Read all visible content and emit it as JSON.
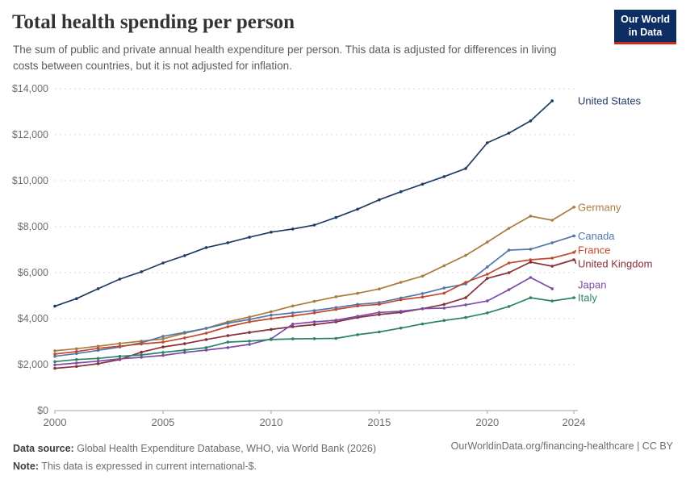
{
  "header": {
    "title": "Total health spending per person",
    "subtitle": "The sum of public and private annual health expenditure per person. This data is adjusted for differences in living costs between countries, but it is not adjusted for inflation.",
    "logo": {
      "line1": "Our World",
      "line2": "in Data",
      "bg_color": "#0d2e63",
      "accent_color": "#d0281e"
    }
  },
  "footer": {
    "source_label": "Data source:",
    "source_text": "Global Health Expenditure Database, WHO, via World Bank (2026)",
    "note_label": "Note:",
    "note_text": "This data is expressed in current international-$.",
    "right_text": "OurWorldinData.org/financing-healthcare | CC BY"
  },
  "chart_data": {
    "type": "line",
    "title": "Total health spending per person",
    "xlabel": "",
    "ylabel": "",
    "ylim": [
      0,
      14000
    ],
    "ytick_step": 2000,
    "currency_prefix": "$",
    "grid": "horizontal-dashed",
    "legend_position": "right-end-labels",
    "xticks": [
      2000,
      2005,
      2010,
      2015,
      2020,
      2024
    ],
    "x": [
      2000,
      2001,
      2002,
      2003,
      2004,
      2005,
      2006,
      2007,
      2008,
      2009,
      2010,
      2011,
      2012,
      2013,
      2014,
      2015,
      2016,
      2017,
      2018,
      2019,
      2020,
      2021,
      2022,
      2023,
      2024
    ],
    "series": [
      {
        "name": "United States",
        "color": "#1d3d63",
        "label_dy": 0,
        "values": [
          4540,
          4870,
          5300,
          5720,
          6040,
          6420,
          6740,
          7090,
          7300,
          7540,
          7760,
          7900,
          8070,
          8400,
          8760,
          9170,
          9520,
          9850,
          10180,
          10530,
          11650,
          12070,
          12600,
          13470,
          null
        ]
      },
      {
        "name": "Germany",
        "color": "#a97c3e",
        "label_dy": 0,
        "values": [
          2600,
          2690,
          2800,
          2920,
          3020,
          3120,
          3370,
          3580,
          3860,
          4070,
          4300,
          4550,
          4750,
          4950,
          5100,
          5290,
          5580,
          5850,
          6300,
          6750,
          7330,
          7930,
          8460,
          8280,
          8850
        ]
      },
      {
        "name": "Canada",
        "color": "#5276a9",
        "label_dy": 0,
        "values": [
          2360,
          2480,
          2620,
          2770,
          2950,
          3230,
          3400,
          3580,
          3800,
          3965,
          4150,
          4250,
          4350,
          4480,
          4620,
          4700,
          4900,
          5090,
          5330,
          5510,
          6250,
          6980,
          7020,
          7300,
          7600
        ]
      },
      {
        "name": "France",
        "color": "#c0492f",
        "label_dy": -3,
        "values": [
          2460,
          2570,
          2710,
          2800,
          2900,
          2980,
          3160,
          3370,
          3650,
          3860,
          4000,
          4120,
          4250,
          4400,
          4550,
          4620,
          4820,
          4940,
          5110,
          5580,
          5930,
          6420,
          6560,
          6630,
          6880
        ]
      },
      {
        "name": "United Kingdom",
        "color": "#883039",
        "label_dy": 5,
        "values": [
          1840,
          1920,
          2040,
          2220,
          2540,
          2770,
          2910,
          3090,
          3260,
          3400,
          3530,
          3650,
          3740,
          3860,
          4050,
          4180,
          4270,
          4430,
          4620,
          4910,
          5750,
          6000,
          6460,
          6280,
          6560
        ]
      },
      {
        "name": "Japan",
        "color": "#7e4ca8",
        "label_dy": -5,
        "values": [
          1990,
          2070,
          2150,
          2250,
          2320,
          2400,
          2530,
          2630,
          2740,
          2880,
          3120,
          3760,
          3860,
          3930,
          4100,
          4270,
          4320,
          4430,
          4460,
          4600,
          4770,
          5260,
          5790,
          5300,
          null
        ]
      },
      {
        "name": "Italy",
        "color": "#2c8465",
        "label_dy": 0,
        "values": [
          2130,
          2220,
          2270,
          2360,
          2420,
          2530,
          2630,
          2740,
          2980,
          3020,
          3090,
          3120,
          3130,
          3140,
          3300,
          3420,
          3590,
          3770,
          3920,
          4050,
          4250,
          4530,
          4910,
          4770,
          4910
        ]
      }
    ]
  }
}
